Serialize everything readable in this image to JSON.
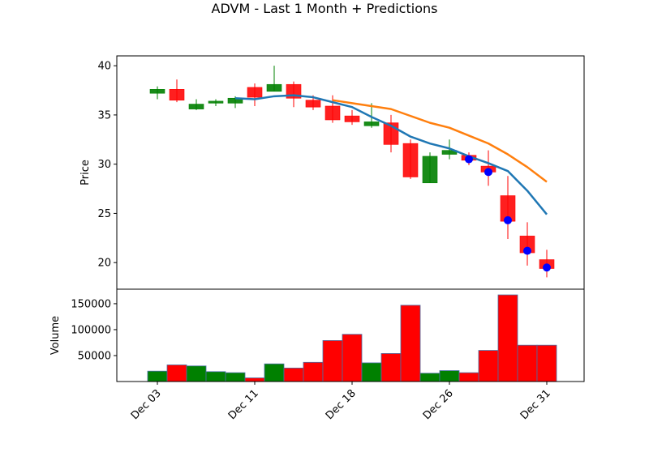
{
  "chart_data": {
    "type": "candlestick",
    "title": "ADVM - Last 1 Month + Predictions",
    "price_panel": {
      "ylabel": "Price",
      "ylim": [
        17.3,
        41.0
      ],
      "yticks": [
        20,
        25,
        30,
        35,
        40
      ]
    },
    "volume_panel": {
      "ylabel": "Volume",
      "ylim": [
        0,
        178000
      ],
      "yticks": [
        50000,
        100000,
        150000
      ],
      "ytick_labels": [
        "50000",
        "100000",
        "150000"
      ]
    },
    "x_tick_labels": [
      {
        "index": 0,
        "label": "Dec 03"
      },
      {
        "index": 5,
        "label": "Dec 11"
      },
      {
        "index": 10,
        "label": "Dec 18"
      },
      {
        "index": 15,
        "label": "Dec 26"
      },
      {
        "index": 20,
        "label": "Dec 31"
      }
    ],
    "candles": [
      {
        "open": 37.2,
        "high": 37.9,
        "low": 36.6,
        "close": 37.6,
        "volume": 20000
      },
      {
        "open": 37.6,
        "high": 38.6,
        "low": 36.3,
        "close": 36.5,
        "volume": 32000
      },
      {
        "open": 35.6,
        "high": 36.6,
        "low": 35.5,
        "close": 36.1,
        "volume": 30000
      },
      {
        "open": 36.2,
        "high": 36.6,
        "low": 35.9,
        "close": 36.4,
        "volume": 19000
      },
      {
        "open": 36.2,
        "high": 36.9,
        "low": 35.7,
        "close": 36.7,
        "volume": 17000
      },
      {
        "open": 37.8,
        "high": 38.2,
        "low": 35.9,
        "close": 36.8,
        "volume": 7000
      },
      {
        "open": 37.4,
        "high": 40.0,
        "low": 37.4,
        "close": 38.1,
        "volume": 34000
      },
      {
        "open": 38.1,
        "high": 38.4,
        "low": 35.8,
        "close": 36.7,
        "volume": 26000
      },
      {
        "open": 36.5,
        "high": 37.0,
        "low": 35.5,
        "close": 35.8,
        "volume": 37000
      },
      {
        "open": 35.9,
        "high": 37.0,
        "low": 34.2,
        "close": 34.5,
        "volume": 79000
      },
      {
        "open": 34.9,
        "high": 35.5,
        "low": 34.0,
        "close": 34.3,
        "volume": 91000
      },
      {
        "open": 33.9,
        "high": 36.2,
        "low": 33.7,
        "close": 34.3,
        "volume": 36000
      },
      {
        "open": 34.2,
        "high": 35.0,
        "low": 31.2,
        "close": 32.0,
        "volume": 54000
      },
      {
        "open": 32.1,
        "high": 32.5,
        "low": 28.5,
        "close": 28.7,
        "volume": 147000
      },
      {
        "open": 28.1,
        "high": 31.2,
        "low": 28.1,
        "close": 30.8,
        "volume": 16000
      },
      {
        "open": 31.0,
        "high": 32.5,
        "low": 30.5,
        "close": 31.4,
        "volume": 21000
      },
      {
        "open": 30.9,
        "high": 31.2,
        "low": 29.9,
        "close": 30.4,
        "volume": 17000
      },
      {
        "open": 29.8,
        "high": 31.4,
        "low": 27.8,
        "close": 29.2,
        "volume": 60000
      },
      {
        "open": 26.8,
        "high": 28.8,
        "low": 22.4,
        "close": 24.2,
        "volume": 167000
      },
      {
        "open": 22.7,
        "high": 24.1,
        "low": 19.7,
        "close": 21.0,
        "volume": 70000
      },
      {
        "open": 20.3,
        "high": 21.3,
        "low": 18.5,
        "close": 19.4,
        "volume": 70000
      }
    ],
    "series": [
      {
        "color": "#1f77b4",
        "points": [
          [
            4,
            36.7
          ],
          [
            5,
            36.6
          ],
          [
            6,
            36.9
          ],
          [
            7,
            37.0
          ],
          [
            8,
            36.8
          ],
          [
            9,
            36.3
          ],
          [
            10,
            35.8
          ],
          [
            11,
            34.8
          ],
          [
            12,
            33.9
          ],
          [
            13,
            32.8
          ],
          [
            14,
            32.1
          ],
          [
            15,
            31.6
          ],
          [
            16,
            30.8
          ],
          [
            17,
            30.1
          ],
          [
            18,
            29.3
          ],
          [
            19,
            27.3
          ],
          [
            20,
            24.9
          ]
        ]
      },
      {
        "color": "#ff7f0e",
        "points": [
          [
            9,
            36.5
          ],
          [
            10,
            36.2
          ],
          [
            11,
            35.9
          ],
          [
            12,
            35.6
          ],
          [
            13,
            34.9
          ],
          [
            14,
            34.2
          ],
          [
            15,
            33.7
          ],
          [
            16,
            32.9
          ],
          [
            17,
            32.1
          ],
          [
            18,
            31.0
          ],
          [
            19,
            29.7
          ],
          [
            20,
            28.2
          ]
        ]
      }
    ],
    "markers": [
      {
        "index": 16,
        "value": 30.5
      },
      {
        "index": 17,
        "value": 29.2
      },
      {
        "index": 18,
        "value": 24.3
      },
      {
        "index": 19,
        "value": 21.2
      },
      {
        "index": 20,
        "value": 19.5
      }
    ],
    "colors": {
      "up": "#008000",
      "down": "#ff0000",
      "marker": "#0000ff"
    }
  }
}
